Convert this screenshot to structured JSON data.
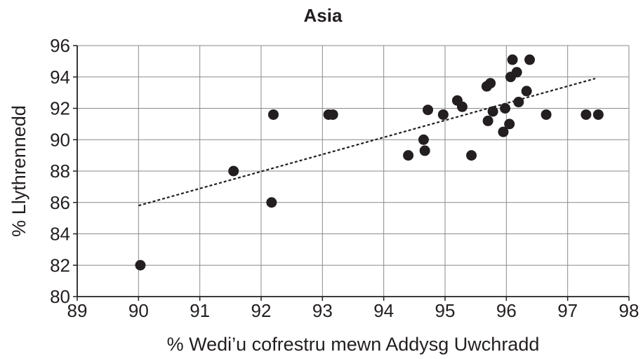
{
  "chart_data": {
    "type": "scatter",
    "title": "Asia",
    "xlabel": "% Wedi’u cofrestru mewn Addysg Uwchradd",
    "ylabel": "% Llythrennedd",
    "xlim": [
      89,
      98
    ],
    "ylim": [
      80,
      96
    ],
    "x_ticks": [
      89,
      90,
      91,
      92,
      93,
      94,
      95,
      96,
      97,
      98
    ],
    "y_ticks": [
      80,
      82,
      84,
      86,
      88,
      90,
      92,
      94,
      96
    ],
    "grid": true,
    "colors": {
      "points": "#231f20",
      "grid": "#8a8a8a",
      "axes": "#231f20"
    },
    "points": [
      {
        "x": 90.03,
        "y": 82.0
      },
      {
        "x": 91.55,
        "y": 88.0
      },
      {
        "x": 92.17,
        "y": 86.0
      },
      {
        "x": 92.2,
        "y": 91.6
      },
      {
        "x": 93.1,
        "y": 91.6
      },
      {
        "x": 93.17,
        "y": 91.6
      },
      {
        "x": 94.4,
        "y": 89.0
      },
      {
        "x": 94.65,
        "y": 90.0
      },
      {
        "x": 94.67,
        "y": 89.3
      },
      {
        "x": 94.72,
        "y": 91.9
      },
      {
        "x": 94.97,
        "y": 91.6
      },
      {
        "x": 95.2,
        "y": 92.5
      },
      {
        "x": 95.28,
        "y": 92.1
      },
      {
        "x": 95.43,
        "y": 89.0
      },
      {
        "x": 95.68,
        "y": 93.4
      },
      {
        "x": 95.74,
        "y": 93.6
      },
      {
        "x": 95.7,
        "y": 91.2
      },
      {
        "x": 95.78,
        "y": 91.8
      },
      {
        "x": 95.95,
        "y": 90.5
      },
      {
        "x": 95.98,
        "y": 92.0
      },
      {
        "x": 96.05,
        "y": 91.0
      },
      {
        "x": 96.07,
        "y": 94.0
      },
      {
        "x": 96.1,
        "y": 95.1
      },
      {
        "x": 96.17,
        "y": 94.3
      },
      {
        "x": 96.2,
        "y": 92.4
      },
      {
        "x": 96.33,
        "y": 93.1
      },
      {
        "x": 96.38,
        "y": 95.1
      },
      {
        "x": 96.65,
        "y": 91.6
      },
      {
        "x": 97.3,
        "y": 91.6
      },
      {
        "x": 97.5,
        "y": 91.6
      }
    ],
    "trendline": {
      "x": [
        90.0,
        97.45
      ],
      "y": [
        85.8,
        93.9
      ]
    }
  }
}
